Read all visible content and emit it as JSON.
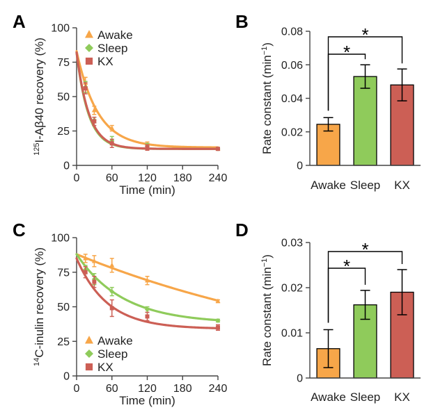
{
  "colors": {
    "awake": "#f7a649",
    "sleep": "#8fcb5b",
    "kx": "#cc5f55"
  },
  "panels": {
    "a": "A",
    "b": "B",
    "c": "C",
    "d": "D"
  },
  "y_sup": {
    "a": "125",
    "c": "14"
  },
  "significance_mark": "*",
  "chart_data": [
    {
      "panel": "A",
      "type": "line",
      "title": "",
      "xlabel": "Time (min)",
      "ylabel": "I-Aβ40 recovery (%)",
      "xlim": [
        0,
        240
      ],
      "ylim": [
        0,
        100
      ],
      "xticks": [
        "0",
        "60",
        "120",
        "180",
        "240"
      ],
      "yticks": [
        "0",
        "25",
        "50",
        "75",
        "100"
      ],
      "legend_position": "top-right",
      "series": [
        {
          "name": "Awake",
          "color": "#f7a649",
          "marker": "triangle",
          "x": [
            15,
            30,
            60,
            120,
            240
          ],
          "y": [
            60,
            40,
            27,
            15,
            12
          ],
          "err": [
            4,
            3,
            2,
            2,
            1
          ],
          "fit": {
            "a": 70,
            "k": 0.028,
            "c": 13
          }
        },
        {
          "name": "Sleep",
          "color": "#8fcb5b",
          "marker": "diamond",
          "x": [
            15,
            30,
            60,
            120,
            240
          ],
          "y": [
            57,
            33,
            18,
            14,
            12
          ],
          "err": [
            4,
            2,
            3,
            2,
            1
          ],
          "fit": {
            "a": 70,
            "k": 0.05,
            "c": 12
          }
        },
        {
          "name": "KX",
          "color": "#cc5f55",
          "marker": "square",
          "x": [
            15,
            30,
            60,
            120,
            240
          ],
          "y": [
            56,
            32,
            16,
            13,
            12
          ],
          "err": [
            4,
            3,
            3,
            2,
            1
          ],
          "fit": {
            "a": 70,
            "k": 0.048,
            "c": 12
          }
        }
      ]
    },
    {
      "panel": "B",
      "type": "bar",
      "title": "",
      "xlabel": "",
      "ylabel": "Rate constant (min",
      "ylabel_sup": "−1",
      "ylabel_close": ")",
      "ylim": [
        0,
        0.08
      ],
      "yticks": [
        "0",
        "0.02",
        "0.04",
        "0.06",
        "0.08"
      ],
      "categories": [
        "Awake",
        "Sleep",
        "KX"
      ],
      "values": [
        0.0245,
        0.053,
        0.048
      ],
      "errors": [
        0.004,
        0.007,
        0.0095
      ],
      "colors": [
        "#f7a649",
        "#8fcb5b",
        "#cc5f55"
      ],
      "significance": [
        {
          "from": 0,
          "to": 1,
          "label": "*"
        },
        {
          "from": 0,
          "to": 2,
          "label": "*"
        }
      ]
    },
    {
      "panel": "C",
      "type": "line",
      "title": "",
      "xlabel": "Time (min)",
      "ylabel": "C-inulin recovery (%)",
      "xlim": [
        0,
        240
      ],
      "ylim": [
        0,
        100
      ],
      "xticks": [
        "0",
        "60",
        "120",
        "180",
        "240"
      ],
      "yticks": [
        "0",
        "25",
        "50",
        "75",
        "100"
      ],
      "legend_position": "bottom-left",
      "series": [
        {
          "name": "Awake",
          "color": "#f7a649",
          "marker": "triangle",
          "x": [
            15,
            30,
            60,
            120,
            240
          ],
          "y": [
            85,
            83,
            80,
            69,
            54
          ],
          "err": [
            3,
            4,
            5,
            3,
            1
          ],
          "fit": {
            "a": 88,
            "k": 0.002,
            "c": 0
          }
        },
        {
          "name": "Sleep",
          "color": "#8fcb5b",
          "marker": "diamond",
          "x": [
            15,
            30,
            60,
            120,
            240
          ],
          "y": [
            77,
            70,
            61,
            48,
            40
          ],
          "err": [
            3,
            4,
            3,
            2,
            1
          ],
          "fit": {
            "a": 50,
            "k": 0.0128,
            "c": 38
          }
        },
        {
          "name": "KX",
          "color": "#cc5f55",
          "marker": "square",
          "x": [
            15,
            30,
            60,
            120,
            240
          ],
          "y": [
            75,
            68,
            49,
            43,
            35
          ],
          "err": [
            4,
            4,
            6,
            3,
            2
          ],
          "fit": {
            "a": 51,
            "k": 0.0192,
            "c": 34
          }
        }
      ]
    },
    {
      "panel": "D",
      "type": "bar",
      "title": "",
      "xlabel": "",
      "ylabel": "Rate constant (min",
      "ylabel_sup": "−1",
      "ylabel_close": ")",
      "ylim": [
        0,
        0.03
      ],
      "yticks": [
        "0",
        "0.01",
        "0.02",
        "0.03"
      ],
      "categories": [
        "Awake",
        "Sleep",
        "KX"
      ],
      "values": [
        0.0065,
        0.0162,
        0.019
      ],
      "errors": [
        0.0042,
        0.0032,
        0.005
      ],
      "colors": [
        "#f7a649",
        "#8fcb5b",
        "#cc5f55"
      ],
      "significance": [
        {
          "from": 0,
          "to": 1,
          "label": "*"
        },
        {
          "from": 0,
          "to": 2,
          "label": "*"
        }
      ]
    }
  ]
}
